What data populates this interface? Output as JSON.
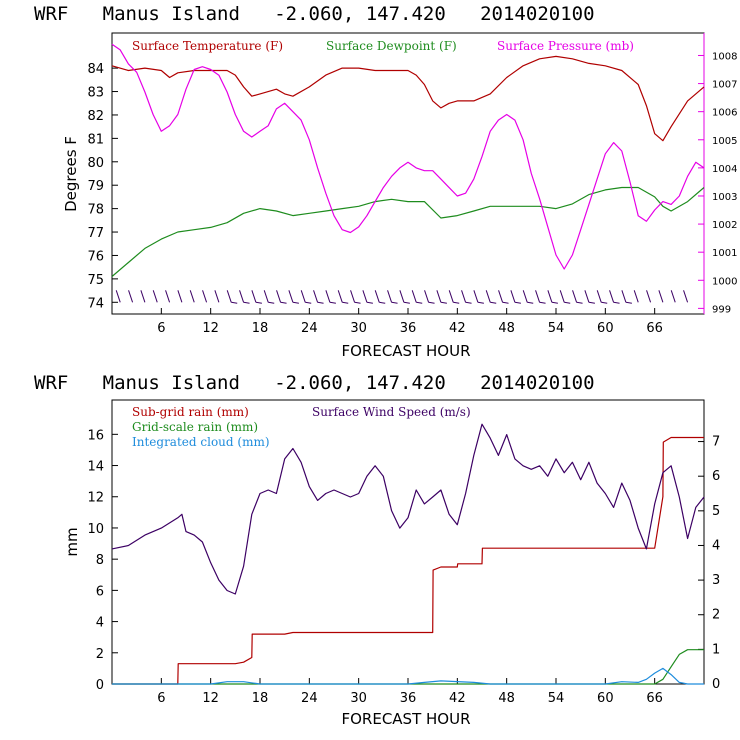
{
  "charts": [
    {
      "title": "WRF   Manus Island   -2.060, 147.420   2014020100",
      "xlabel": "FORECAST HOUR",
      "ylabel": "Degrees F",
      "x_ticks": [
        6,
        12,
        18,
        24,
        30,
        36,
        42,
        48,
        54,
        60,
        66
      ],
      "y_ticks_left": [
        74,
        75,
        76,
        77,
        78,
        79,
        80,
        81,
        82,
        83,
        84
      ],
      "y_ticks_right": [
        999,
        1000,
        1001,
        1002,
        1003,
        1004,
        1005,
        1006,
        1007,
        1008
      ],
      "legend": [
        {
          "label": "Surface Temperature (F)",
          "color": "#b00000"
        },
        {
          "label": "Surface Dewpoint (F)",
          "color": "#1e8c1e"
        },
        {
          "label": "Surface Pressure (mb)",
          "color": "#e600e6"
        }
      ]
    },
    {
      "title": "WRF   Manus Island   -2.060, 147.420   2014020100",
      "xlabel": "FORECAST HOUR",
      "ylabel": "mm",
      "x_ticks": [
        6,
        12,
        18,
        24,
        30,
        36,
        42,
        48,
        54,
        60,
        66
      ],
      "y_ticks_left": [
        0,
        2,
        4,
        6,
        8,
        10,
        12,
        14,
        16
      ],
      "y_ticks_right": [
        0,
        1,
        2,
        3,
        4,
        5,
        6,
        7
      ],
      "legend": [
        {
          "label": "Sub-grid rain (mm)",
          "color": "#b00000"
        },
        {
          "label": "Grid-scale rain (mm)",
          "color": "#1e8c1e"
        },
        {
          "label": "Integrated cloud (mm)",
          "color": "#1e8cdc"
        },
        {
          "label": "Surface Wind Speed (m/s)",
          "color": "#3c0064"
        }
      ]
    }
  ],
  "chart_data": [
    {
      "type": "line",
      "x_range": [
        0,
        72
      ],
      "y_range": [
        73.5,
        85.5
      ],
      "y2_range": [
        998.8,
        1008.8
      ],
      "series": [
        {
          "name": "Surface Temperature (F)",
          "axis": "left",
          "color": "#b00000",
          "x": [
            0,
            2,
            4,
            6,
            7,
            8,
            10,
            12,
            14,
            15,
            16,
            17,
            18,
            20,
            21,
            22,
            24,
            26,
            28,
            30,
            32,
            34,
            36,
            37,
            38,
            39,
            40,
            41,
            42,
            44,
            46,
            48,
            50,
            52,
            54,
            56,
            58,
            60,
            62,
            64,
            65,
            66,
            67,
            68,
            70,
            72
          ],
          "y": [
            84.1,
            83.9,
            84.0,
            83.9,
            83.6,
            83.8,
            83.9,
            83.9,
            83.9,
            83.7,
            83.2,
            82.8,
            82.9,
            83.1,
            82.9,
            82.8,
            83.2,
            83.7,
            84.0,
            84.0,
            83.9,
            83.9,
            83.9,
            83.7,
            83.3,
            82.6,
            82.3,
            82.5,
            82.6,
            82.6,
            82.9,
            83.6,
            84.1,
            84.4,
            84.5,
            84.4,
            84.2,
            84.1,
            83.9,
            83.3,
            82.4,
            81.2,
            80.9,
            81.5,
            82.6,
            83.2
          ]
        },
        {
          "name": "Surface Dewpoint (F)",
          "axis": "left",
          "color": "#1e8c1e",
          "x": [
            0,
            2,
            4,
            6,
            8,
            10,
            12,
            14,
            16,
            18,
            20,
            22,
            24,
            26,
            28,
            30,
            32,
            34,
            36,
            38,
            40,
            42,
            44,
            46,
            48,
            50,
            52,
            54,
            56,
            58,
            60,
            62,
            64,
            66,
            67,
            68,
            70,
            72
          ],
          "y": [
            75.1,
            75.7,
            76.3,
            76.7,
            77.0,
            77.1,
            77.2,
            77.4,
            77.8,
            78.0,
            77.9,
            77.7,
            77.8,
            77.9,
            78.0,
            78.1,
            78.3,
            78.4,
            78.3,
            78.3,
            77.6,
            77.7,
            77.9,
            78.1,
            78.1,
            78.1,
            78.1,
            78.0,
            78.2,
            78.6,
            78.8,
            78.9,
            78.9,
            78.5,
            78.1,
            77.9,
            78.3,
            78.9
          ]
        },
        {
          "name": "Surface Pressure (mb)",
          "axis": "right",
          "color": "#e600e6",
          "x": [
            0,
            1,
            2,
            3,
            4,
            5,
            6,
            7,
            8,
            9,
            10,
            11,
            12,
            13,
            14,
            15,
            16,
            17,
            18,
            19,
            20,
            21,
            22,
            23,
            24,
            25,
            26,
            27,
            28,
            29,
            30,
            31,
            32,
            33,
            34,
            35,
            36,
            37,
            38,
            39,
            40,
            41,
            42,
            43,
            44,
            45,
            46,
            47,
            48,
            49,
            50,
            51,
            52,
            53,
            54,
            55,
            56,
            57,
            58,
            59,
            60,
            61,
            62,
            63,
            64,
            65,
            66,
            67,
            68,
            69,
            70,
            71,
            72
          ],
          "y": [
            1008.4,
            1008.2,
            1007.7,
            1007.4,
            1006.7,
            1005.9,
            1005.3,
            1005.5,
            1005.9,
            1006.8,
            1007.5,
            1007.6,
            1007.5,
            1007.3,
            1006.7,
            1005.9,
            1005.3,
            1005.1,
            1005.3,
            1005.5,
            1006.1,
            1006.3,
            1006.0,
            1005.7,
            1005.0,
            1004.0,
            1003.1,
            1002.3,
            1001.8,
            1001.7,
            1001.9,
            1002.3,
            1002.8,
            1003.3,
            1003.7,
            1004.0,
            1004.2,
            1004.0,
            1003.9,
            1003.9,
            1003.6,
            1003.3,
            1003.0,
            1003.1,
            1003.6,
            1004.4,
            1005.3,
            1005.7,
            1005.9,
            1005.7,
            1005.0,
            1003.8,
            1002.9,
            1001.9,
            1000.9,
            1000.4,
            1000.9,
            1001.8,
            1002.7,
            1003.6,
            1004.5,
            1004.9,
            1004.6,
            1003.5,
            1002.3,
            1002.1,
            1002.5,
            1002.8,
            1002.7,
            1003.0,
            1003.7,
            1004.2,
            1004.0
          ]
        }
      ]
    },
    {
      "type": "line",
      "x_range": [
        0,
        72
      ],
      "y_range": [
        0,
        18.2
      ],
      "y2_range": [
        0,
        8.2
      ],
      "series": [
        {
          "name": "Sub-grid rain (mm)",
          "axis": "left",
          "color": "#b00000",
          "x": [
            0,
            8,
            8.05,
            15,
            16,
            17,
            17.05,
            21,
            22,
            39,
            39.05,
            40,
            42,
            42.05,
            45,
            45.05,
            64,
            66,
            67,
            67.05,
            68,
            72
          ],
          "y": [
            0,
            0,
            1.3,
            1.3,
            1.4,
            1.7,
            3.2,
            3.2,
            3.3,
            3.3,
            7.3,
            7.5,
            7.5,
            7.7,
            7.7,
            8.7,
            8.7,
            8.7,
            12.0,
            15.5,
            15.8,
            15.8
          ]
        },
        {
          "name": "Grid-scale rain (mm)",
          "axis": "left",
          "color": "#1e8c1e",
          "x": [
            0,
            66,
            67,
            68,
            69,
            70,
            72
          ],
          "y": [
            0,
            0,
            0.3,
            1.1,
            1.9,
            2.2,
            2.2
          ]
        },
        {
          "name": "Integrated cloud (mm)",
          "axis": "left",
          "color": "#1e8cdc",
          "x": [
            0,
            12,
            14,
            16,
            18,
            36,
            38,
            40,
            44,
            46,
            48,
            60,
            62,
            64,
            65,
            66,
            67,
            68,
            69,
            70,
            72
          ],
          "y": [
            0,
            0,
            0.15,
            0.15,
            0,
            0,
            0.1,
            0.2,
            0.1,
            0,
            0,
            0,
            0.15,
            0.1,
            0.3,
            0.7,
            1.0,
            0.6,
            0.1,
            0,
            0
          ]
        },
        {
          "name": "Surface Wind Speed (m/s)",
          "axis": "right",
          "color": "#3c0064",
          "x": [
            0,
            2,
            4,
            6,
            8,
            8.5,
            9,
            10,
            11,
            12,
            13,
            14,
            15,
            16,
            17,
            18,
            19,
            20,
            21,
            22,
            23,
            24,
            25,
            26,
            27,
            28,
            29,
            30,
            31,
            32,
            33,
            34,
            35,
            36,
            37,
            38,
            39,
            40,
            41,
            42,
            43,
            44,
            45,
            46,
            47,
            48,
            49,
            50,
            51,
            52,
            53,
            54,
            55,
            56,
            57,
            58,
            59,
            60,
            61,
            62,
            63,
            64,
            65,
            66,
            67,
            68,
            69,
            70,
            71,
            72
          ],
          "y": [
            3.9,
            4.0,
            4.3,
            4.5,
            4.8,
            4.9,
            4.4,
            4.3,
            4.1,
            3.5,
            3.0,
            2.7,
            2.6,
            3.4,
            4.9,
            5.5,
            5.6,
            5.5,
            6.5,
            6.8,
            6.4,
            5.7,
            5.3,
            5.5,
            5.6,
            5.5,
            5.4,
            5.5,
            6.0,
            6.3,
            6.0,
            5.0,
            4.5,
            4.8,
            5.6,
            5.2,
            5.4,
            5.6,
            4.9,
            4.6,
            5.5,
            6.6,
            7.5,
            7.1,
            6.6,
            7.2,
            6.5,
            6.3,
            6.2,
            6.3,
            6.0,
            6.5,
            6.1,
            6.4,
            5.9,
            6.4,
            5.8,
            5.5,
            5.1,
            5.8,
            5.3,
            4.5,
            3.9,
            5.2,
            6.1,
            6.3,
            5.4,
            4.2,
            5.1,
            5.4
          ]
        }
      ]
    }
  ]
}
